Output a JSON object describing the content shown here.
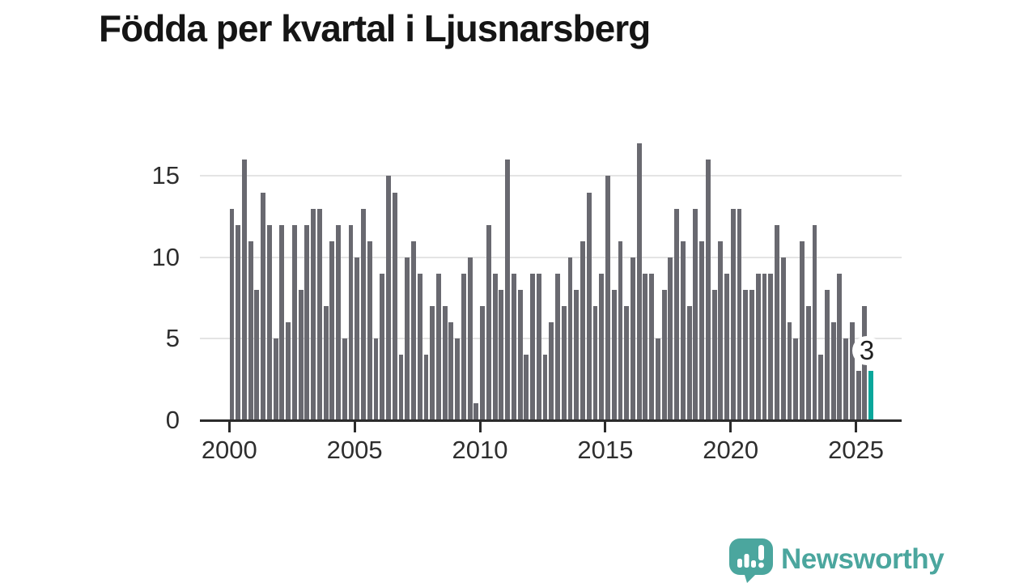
{
  "title": "Födda per kvartal i Ljusnarsberg",
  "annotation": {
    "value_label": "3"
  },
  "logo": {
    "text": "Newsworthy"
  },
  "colors": {
    "bar": "#696970",
    "highlight": "#0aa79b",
    "axis": "#2b2b2b",
    "gridline": "#e4e4e4",
    "logo_teal": "#4ba69e",
    "title_text": "#151515",
    "tick_text": "#2e2e2e"
  },
  "chart_data": {
    "type": "bar",
    "title": "Födda per kvartal i Ljusnarsberg",
    "x_unit": "quarter",
    "first_quarter": "2000-Q1",
    "last_quarter": "2025-Q3",
    "x_tick_labels": [
      "2000",
      "2005",
      "2010",
      "2015",
      "2020",
      "2025"
    ],
    "y_tick_labels": [
      "0",
      "5",
      "10",
      "15"
    ],
    "ylim": [
      0,
      17
    ],
    "grid": "horizontal",
    "legend": "none",
    "highlight_last_bar": true,
    "last_value_annotation": "3",
    "values": [
      13,
      12,
      16,
      11,
      8,
      14,
      12,
      5,
      12,
      6,
      12,
      8,
      12,
      13,
      13,
      7,
      11,
      12,
      5,
      12,
      10,
      13,
      11,
      5,
      9,
      15,
      14,
      4,
      10,
      11,
      9,
      4,
      7,
      9,
      7,
      6,
      5,
      9,
      10,
      1,
      7,
      12,
      9,
      8,
      16,
      9,
      8,
      4,
      9,
      9,
      4,
      6,
      9,
      7,
      10,
      8,
      11,
      14,
      7,
      9,
      15,
      8,
      11,
      7,
      10,
      17,
      9,
      9,
      5,
      8,
      10,
      13,
      11,
      7,
      13,
      11,
      16,
      8,
      11,
      9,
      13,
      13,
      8,
      8,
      9,
      9,
      9,
      12,
      10,
      6,
      5,
      11,
      7,
      12,
      4,
      8,
      6,
      9,
      5,
      6,
      3,
      7,
      3
    ]
  }
}
